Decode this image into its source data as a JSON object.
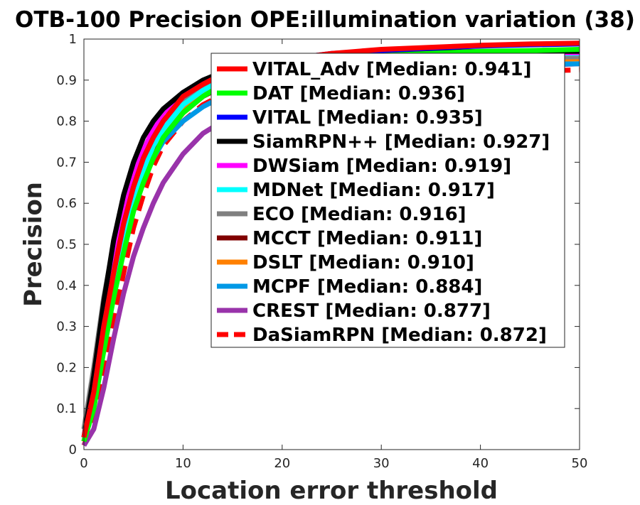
{
  "chart_data": {
    "type": "line",
    "title": "OTB-100 Precision OPE:illumination variation (38)",
    "xlabel": "Location error threshold",
    "ylabel": "Precision",
    "xlim": [
      0,
      50
    ],
    "ylim": [
      0,
      1
    ],
    "xticks": [
      "0",
      "10",
      "20",
      "30",
      "40",
      "50"
    ],
    "yticks": [
      "0",
      "0.1",
      "0.2",
      "0.3",
      "0.4",
      "0.5",
      "0.6",
      "0.7",
      "0.8",
      "0.9",
      "1"
    ],
    "grid": false,
    "legend_position": "top-right",
    "x": [
      0,
      1,
      2,
      3,
      4,
      5,
      6,
      7,
      8,
      10,
      12,
      14,
      16,
      20,
      25,
      30,
      35,
      40,
      45,
      50
    ],
    "series": [
      {
        "name": "VITAL_Adv [Median: 0.941]",
        "color": "#ff0000",
        "dash": "solid",
        "values": [
          0.03,
          0.14,
          0.3,
          0.43,
          0.55,
          0.64,
          0.71,
          0.76,
          0.8,
          0.86,
          0.89,
          0.915,
          0.93,
          0.95,
          0.965,
          0.975,
          0.98,
          0.985,
          0.988,
          0.99
        ]
      },
      {
        "name": "DAT [Median: 0.936]",
        "color": "#00ff00",
        "dash": "solid",
        "values": [
          0.02,
          0.1,
          0.24,
          0.37,
          0.48,
          0.58,
          0.65,
          0.71,
          0.76,
          0.82,
          0.86,
          0.89,
          0.91,
          0.94,
          0.955,
          0.96,
          0.965,
          0.97,
          0.972,
          0.975
        ]
      },
      {
        "name": "VITAL [Median: 0.935]",
        "color": "#0000ff",
        "dash": "solid",
        "values": [
          0.03,
          0.14,
          0.3,
          0.43,
          0.55,
          0.64,
          0.71,
          0.76,
          0.8,
          0.86,
          0.89,
          0.915,
          0.93,
          0.95,
          0.965,
          0.972,
          0.978,
          0.983,
          0.986,
          0.988
        ]
      },
      {
        "name": "SiamRPN++ [Median: 0.927]",
        "color": "#000000",
        "dash": "solid",
        "values": [
          0.03,
          0.18,
          0.36,
          0.51,
          0.62,
          0.7,
          0.76,
          0.8,
          0.83,
          0.87,
          0.9,
          0.92,
          0.935,
          0.95,
          0.96,
          0.965,
          0.968,
          0.97,
          0.97,
          0.97
        ]
      },
      {
        "name": "DWSiam [Median: 0.919]",
        "color": "#ff00ff",
        "dash": "solid",
        "values": [
          0.03,
          0.15,
          0.32,
          0.46,
          0.58,
          0.67,
          0.73,
          0.78,
          0.82,
          0.87,
          0.895,
          0.915,
          0.93,
          0.945,
          0.955,
          0.96,
          0.962,
          0.965,
          0.966,
          0.967
        ]
      },
      {
        "name": "MDNet [Median: 0.917]",
        "color": "#00ffff",
        "dash": "solid",
        "values": [
          0.03,
          0.13,
          0.28,
          0.41,
          0.52,
          0.61,
          0.68,
          0.74,
          0.78,
          0.84,
          0.875,
          0.9,
          0.92,
          0.94,
          0.95,
          0.955,
          0.96,
          0.962,
          0.964,
          0.965
        ]
      },
      {
        "name": "ECO [Median: 0.916]",
        "color": "#808080",
        "dash": "solid",
        "values": [
          0.05,
          0.2,
          0.37,
          0.5,
          0.6,
          0.68,
          0.73,
          0.77,
          0.8,
          0.85,
          0.88,
          0.9,
          0.915,
          0.93,
          0.94,
          0.945,
          0.95,
          0.953,
          0.955,
          0.957
        ]
      },
      {
        "name": "MCCT [Median: 0.911]",
        "color": "#800000",
        "dash": "solid",
        "values": [
          0.02,
          0.12,
          0.27,
          0.4,
          0.51,
          0.6,
          0.67,
          0.72,
          0.76,
          0.82,
          0.86,
          0.885,
          0.905,
          0.925,
          0.94,
          0.95,
          0.955,
          0.96,
          0.963,
          0.965
        ]
      },
      {
        "name": "DSLT [Median: 0.910]",
        "color": "#ff8000",
        "dash": "solid",
        "values": [
          0.02,
          0.12,
          0.28,
          0.42,
          0.53,
          0.62,
          0.69,
          0.74,
          0.78,
          0.83,
          0.865,
          0.89,
          0.905,
          0.925,
          0.935,
          0.94,
          0.945,
          0.948,
          0.95,
          0.952
        ]
      },
      {
        "name": "MCPF [Median: 0.884]",
        "color": "#0099e6",
        "dash": "solid",
        "values": [
          0.03,
          0.13,
          0.28,
          0.41,
          0.52,
          0.6,
          0.66,
          0.71,
          0.75,
          0.8,
          0.835,
          0.86,
          0.875,
          0.9,
          0.915,
          0.925,
          0.93,
          0.935,
          0.938,
          0.94
        ]
      },
      {
        "name": "CREST [Median: 0.877]",
        "color": "#9933aa",
        "dash": "solid",
        "values": [
          0.01,
          0.05,
          0.15,
          0.27,
          0.38,
          0.47,
          0.54,
          0.6,
          0.65,
          0.72,
          0.77,
          0.8,
          0.83,
          0.87,
          0.9,
          0.915,
          0.925,
          0.93,
          0.935,
          0.94
        ]
      },
      {
        "name": "DaSiamRPN [Median: 0.872]",
        "color": "#ff0000",
        "dash": "dashed",
        "values": [
          0.01,
          0.07,
          0.18,
          0.31,
          0.43,
          0.54,
          0.62,
          0.69,
          0.74,
          0.8,
          0.84,
          0.865,
          0.88,
          0.9,
          0.91,
          0.915,
          0.918,
          0.92,
          0.922,
          0.925
        ]
      }
    ]
  }
}
